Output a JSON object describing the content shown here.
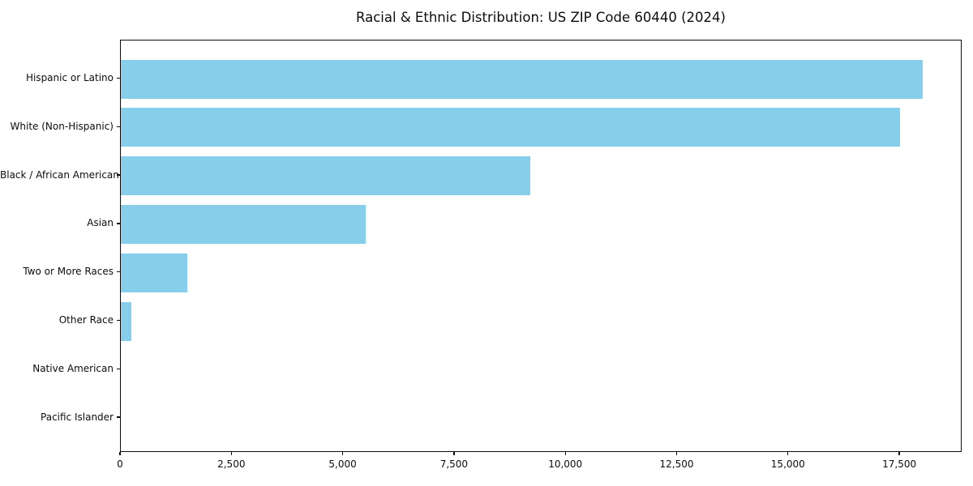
{
  "chart_data": {
    "type": "bar",
    "orientation": "horizontal",
    "title": "Racial & Ethnic Distribution: US ZIP Code 60440 (2024)",
    "categories": [
      "Hispanic or Latino",
      "White (Non-Hispanic)",
      "Black / African American",
      "Asian",
      "Two or More Races",
      "Other Race",
      "Native American",
      "Pacific Islander"
    ],
    "values": [
      18000,
      17500,
      9200,
      5500,
      1500,
      230,
      0,
      0
    ],
    "xlabel": "",
    "ylabel": "",
    "xlim": [
      0,
      18900
    ],
    "x_ticks": [
      0,
      2500,
      5000,
      7500,
      10000,
      12500,
      15000,
      17500
    ],
    "x_tick_labels": [
      "0",
      "2,500",
      "5,000",
      "7,500",
      "10,000",
      "12,500",
      "15,000",
      "17,500"
    ],
    "bar_color": "#87ceeb",
    "grid": false,
    "legend_position": "none"
  },
  "colors": {
    "bar": "#87ceeb",
    "axis": "#0d0d0d",
    "text": "#0d0d0d",
    "background": "#ffffff"
  }
}
